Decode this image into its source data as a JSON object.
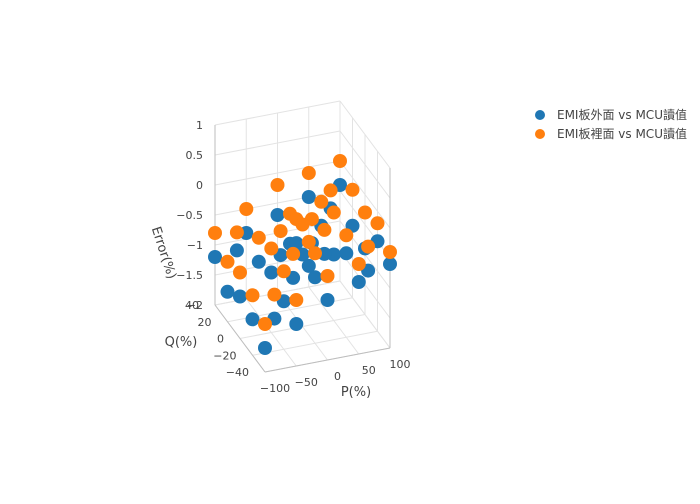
{
  "chart_data": {
    "type": "scatter3d",
    "x_axis": {
      "title": "P(%)",
      "range": [
        -100,
        100
      ],
      "ticks": [
        "-100",
        "-50",
        "0",
        "50",
        "100"
      ]
    },
    "y_axis": {
      "title": "Q(%)",
      "range": [
        -40,
        40
      ],
      "ticks": [
        "-40",
        "-20",
        "0",
        "20",
        "40"
      ]
    },
    "z_axis": {
      "title": "Error(%)",
      "range": [
        -2,
        1
      ],
      "ticks": [
        "-2",
        "-1.5",
        "-1",
        "-0.5",
        "0",
        "0.5",
        "1"
      ]
    },
    "legend_position": "top-right",
    "series": [
      {
        "name": "EMI板外面 vs MCU讀值",
        "color": "#1f77b4",
        "x": [
          -100,
          -100,
          -100,
          -100,
          -100,
          -50,
          -50,
          -50,
          -50,
          -50,
          0,
          0,
          0,
          0,
          0,
          50,
          50,
          50,
          50,
          50,
          100,
          100,
          100,
          100,
          100,
          -75,
          -25,
          25,
          75,
          -75,
          -25,
          25,
          75,
          0,
          0
        ],
        "y": [
          -40,
          -20,
          0,
          20,
          40,
          -40,
          -20,
          0,
          20,
          40,
          -40,
          -20,
          0,
          20,
          40,
          -40,
          -20,
          0,
          20,
          40,
          -40,
          -20,
          0,
          20,
          40,
          -30,
          -10,
          10,
          30,
          30,
          10,
          -10,
          -30,
          -10,
          10
        ],
        "z": [
          -1.6,
          -1.4,
          -1.3,
          -1.5,
          -1.2,
          -1.3,
          -1.2,
          -1.0,
          -1.1,
          -0.9,
          -1.0,
          -0.9,
          -0.8,
          -0.9,
          -0.7,
          -0.8,
          -0.6,
          -0.9,
          -0.7,
          -0.5,
          -0.6,
          -0.5,
          -0.9,
          -0.8,
          -0.4,
          -1.3,
          -1.0,
          -0.8,
          -0.6,
          -1.0,
          -0.9,
          -0.7,
          -0.8,
          -0.85,
          -0.75
        ]
      },
      {
        "name": "EMI板裡面 vs MCU讀值",
        "color": "#ff7f0e",
        "x": [
          -100,
          -100,
          -100,
          -100,
          -100,
          -50,
          -50,
          -50,
          -50,
          -50,
          0,
          0,
          0,
          0,
          0,
          50,
          50,
          50,
          50,
          50,
          100,
          100,
          100,
          100,
          100,
          -75,
          -25,
          25,
          75,
          -75,
          -25,
          25,
          75,
          0,
          0
        ],
        "y": [
          -40,
          -20,
          0,
          20,
          40,
          -40,
          -20,
          0,
          20,
          40,
          -40,
          -20,
          0,
          20,
          40,
          -40,
          -20,
          0,
          20,
          40,
          -40,
          -20,
          0,
          20,
          40,
          -30,
          -10,
          10,
          30,
          30,
          10,
          -10,
          -30,
          -10,
          10
        ],
        "z": [
          -1.2,
          -1.0,
          -0.9,
          -1.0,
          -0.8,
          -0.9,
          -0.7,
          -0.6,
          -0.7,
          -0.5,
          -0.6,
          -0.5,
          -0.3,
          -0.4,
          -0.2,
          -0.5,
          -0.3,
          -0.2,
          -0.3,
          -0.1,
          -0.4,
          -0.2,
          -0.3,
          -0.2,
          0.0,
          -0.9,
          -0.6,
          -0.4,
          -0.3,
          -0.7,
          -0.5,
          -0.3,
          -0.4,
          -0.45,
          -0.35
        ]
      }
    ]
  }
}
